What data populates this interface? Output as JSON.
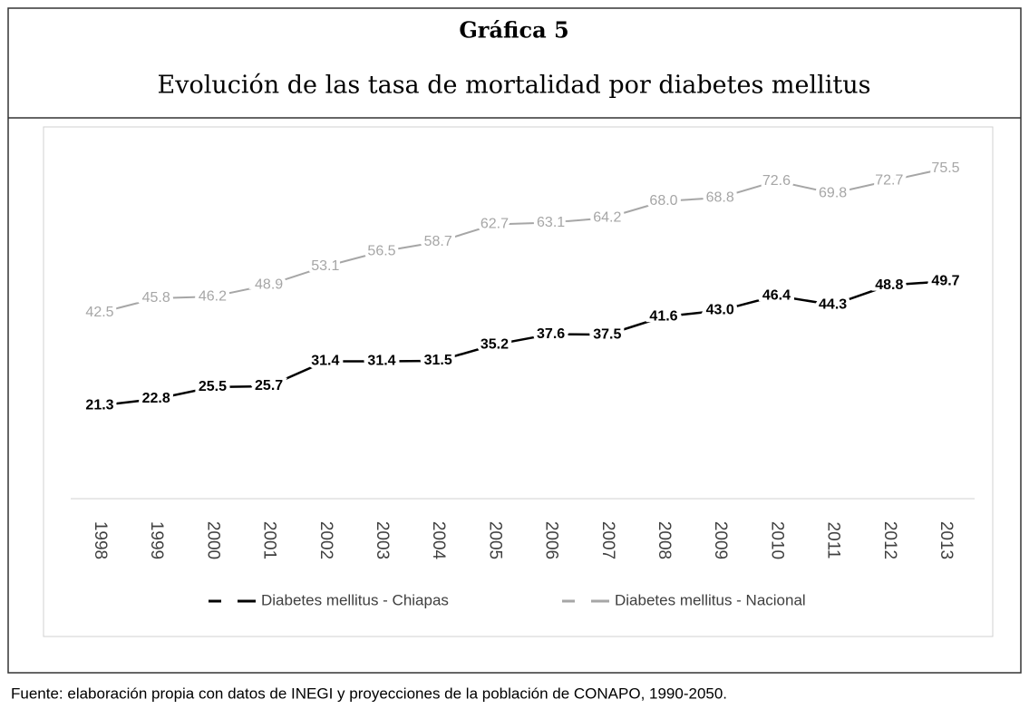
{
  "chart_data": {
    "type": "line",
    "title": "Gráfica 5",
    "subtitle": "Evolución de las tasa de mortalidad por diabetes mellitus",
    "categories": [
      "1998",
      "1999",
      "2000",
      "2001",
      "2002",
      "2003",
      "2004",
      "2005",
      "2006",
      "2007",
      "2008",
      "2009",
      "2010",
      "2011",
      "2012",
      "2013"
    ],
    "series": [
      {
        "name": "Diabetes mellitus - Chiapas",
        "color": "#000000",
        "values": [
          21.3,
          22.8,
          25.5,
          25.7,
          31.4,
          31.4,
          31.5,
          35.2,
          37.6,
          37.5,
          41.6,
          43.0,
          46.4,
          44.3,
          48.8,
          49.7
        ],
        "value_labels": [
          "21.3",
          "22.8",
          "25.5",
          "25.7",
          "31.4",
          "31.4",
          "31.5",
          "35.2",
          "37.6",
          "37.5",
          "41.6",
          "43.0",
          "46.4",
          "44.3",
          "48.8",
          "49.7"
        ]
      },
      {
        "name": "Diabetes mellitus - Nacional",
        "color": "#a6a6a6",
        "values": [
          42.5,
          45.8,
          46.2,
          48.9,
          53.1,
          56.5,
          58.7,
          62.7,
          63.1,
          64.2,
          68.0,
          68.8,
          72.6,
          69.8,
          72.7,
          75.5
        ],
        "value_labels": [
          "42.5",
          "45.8",
          "46.2",
          "48.9",
          "53.1",
          "56.5",
          "58.7",
          "62.7",
          "63.1",
          "64.2",
          "68.0",
          "68.8",
          "72.6",
          "69.8",
          "72.7",
          "75.5"
        ]
      }
    ],
    "ylim": [
      0,
      80
    ],
    "source": "Fuente: elaboración propia con datos de  INEGI y proyecciones de la población de CONAPO, 1990-2050."
  }
}
